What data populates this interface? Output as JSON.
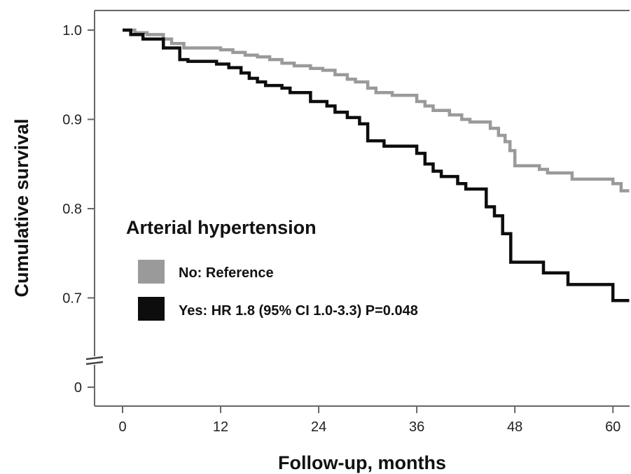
{
  "chart_data": {
    "type": "line",
    "step": true,
    "xlabel": "Follow-up, months",
    "ylabel": "Cumulative survival",
    "x_ticks": [
      0,
      12,
      24,
      36,
      48,
      60
    ],
    "y_ticks": [
      {
        "value": 1.0,
        "label": "1.0"
      },
      {
        "value": 0.9,
        "label": "0.9"
      },
      {
        "value": 0.8,
        "label": "0.8"
      },
      {
        "value": 0.7,
        "label": "0.7"
      },
      {
        "value": 0.6,
        "label": "0"
      }
    ],
    "y_axis_break": true,
    "xlim": [
      -3,
      62
    ],
    "ylim": [
      0.58,
      1.02
    ],
    "grid": false,
    "legend": {
      "title": "Arterial hypertension",
      "placement": "middle-left"
    },
    "series": [
      {
        "name": "No: Reference",
        "color": "#9a9a9a",
        "points": [
          [
            0,
            1.0
          ],
          [
            1.5,
            1.0
          ],
          [
            1.5,
            0.997
          ],
          [
            3,
            0.997
          ],
          [
            3,
            0.995
          ],
          [
            5,
            0.995
          ],
          [
            5,
            0.99
          ],
          [
            6,
            0.99
          ],
          [
            6,
            0.985
          ],
          [
            7.5,
            0.985
          ],
          [
            7.5,
            0.98
          ],
          [
            12,
            0.98
          ],
          [
            12,
            0.978
          ],
          [
            13.5,
            0.978
          ],
          [
            13.5,
            0.975
          ],
          [
            15,
            0.975
          ],
          [
            15,
            0.972
          ],
          [
            16.5,
            0.972
          ],
          [
            16.5,
            0.97
          ],
          [
            18,
            0.97
          ],
          [
            18,
            0.967
          ],
          [
            19.5,
            0.967
          ],
          [
            19.5,
            0.963
          ],
          [
            21,
            0.963
          ],
          [
            21,
            0.96
          ],
          [
            23,
            0.96
          ],
          [
            23,
            0.957
          ],
          [
            24.5,
            0.957
          ],
          [
            24.5,
            0.955
          ],
          [
            26,
            0.955
          ],
          [
            26,
            0.95
          ],
          [
            27.5,
            0.95
          ],
          [
            27.5,
            0.945
          ],
          [
            28.5,
            0.945
          ],
          [
            28.5,
            0.942
          ],
          [
            30,
            0.942
          ],
          [
            30,
            0.935
          ],
          [
            31,
            0.935
          ],
          [
            31,
            0.93
          ],
          [
            33,
            0.93
          ],
          [
            33,
            0.927
          ],
          [
            36,
            0.927
          ],
          [
            36,
            0.92
          ],
          [
            37,
            0.92
          ],
          [
            37,
            0.915
          ],
          [
            38,
            0.915
          ],
          [
            38,
            0.91
          ],
          [
            40,
            0.91
          ],
          [
            40,
            0.905
          ],
          [
            41.5,
            0.905
          ],
          [
            41.5,
            0.9
          ],
          [
            42.5,
            0.9
          ],
          [
            42.5,
            0.897
          ],
          [
            45,
            0.897
          ],
          [
            45,
            0.89
          ],
          [
            46,
            0.89
          ],
          [
            46,
            0.882
          ],
          [
            46.8,
            0.882
          ],
          [
            46.8,
            0.875
          ],
          [
            47.4,
            0.875
          ],
          [
            47.4,
            0.865
          ],
          [
            48,
            0.865
          ],
          [
            48,
            0.848
          ],
          [
            51,
            0.848
          ],
          [
            51,
            0.844
          ],
          [
            52,
            0.844
          ],
          [
            52,
            0.84
          ],
          [
            55,
            0.84
          ],
          [
            55,
            0.833
          ],
          [
            60,
            0.833
          ],
          [
            60,
            0.828
          ],
          [
            61,
            0.828
          ],
          [
            61,
            0.82
          ],
          [
            62,
            0.82
          ]
        ]
      },
      {
        "name": "Yes: HR 1.8 (95% CI 1.0-3.3) P=0.048",
        "color": "#0d0d0d",
        "points": [
          [
            0,
            1.0
          ],
          [
            1,
            1.0
          ],
          [
            1,
            0.995
          ],
          [
            2.5,
            0.995
          ],
          [
            2.5,
            0.99
          ],
          [
            5,
            0.99
          ],
          [
            5,
            0.98
          ],
          [
            7,
            0.98
          ],
          [
            7,
            0.967
          ],
          [
            8,
            0.967
          ],
          [
            8,
            0.965
          ],
          [
            11.5,
            0.965
          ],
          [
            11.5,
            0.962
          ],
          [
            13,
            0.962
          ],
          [
            13,
            0.958
          ],
          [
            14.5,
            0.958
          ],
          [
            14.5,
            0.952
          ],
          [
            15.5,
            0.952
          ],
          [
            15.5,
            0.946
          ],
          [
            16.5,
            0.946
          ],
          [
            16.5,
            0.942
          ],
          [
            17.5,
            0.942
          ],
          [
            17.5,
            0.938
          ],
          [
            19.5,
            0.938
          ],
          [
            19.5,
            0.935
          ],
          [
            20.5,
            0.935
          ],
          [
            20.5,
            0.93
          ],
          [
            23,
            0.93
          ],
          [
            23,
            0.92
          ],
          [
            25,
            0.92
          ],
          [
            25,
            0.915
          ],
          [
            26,
            0.915
          ],
          [
            26,
            0.908
          ],
          [
            27.5,
            0.908
          ],
          [
            27.5,
            0.902
          ],
          [
            29,
            0.902
          ],
          [
            29,
            0.895
          ],
          [
            30,
            0.895
          ],
          [
            30,
            0.876
          ],
          [
            32,
            0.876
          ],
          [
            32,
            0.87
          ],
          [
            36,
            0.87
          ],
          [
            36,
            0.862
          ],
          [
            37,
            0.862
          ],
          [
            37,
            0.85
          ],
          [
            38,
            0.85
          ],
          [
            38,
            0.842
          ],
          [
            39,
            0.842
          ],
          [
            39,
            0.836
          ],
          [
            41,
            0.836
          ],
          [
            41,
            0.828
          ],
          [
            42,
            0.828
          ],
          [
            42,
            0.822
          ],
          [
            44.5,
            0.822
          ],
          [
            44.5,
            0.802
          ],
          [
            45.5,
            0.802
          ],
          [
            45.5,
            0.792
          ],
          [
            46.5,
            0.792
          ],
          [
            46.5,
            0.772
          ],
          [
            47.5,
            0.772
          ],
          [
            47.5,
            0.74
          ],
          [
            51.5,
            0.74
          ],
          [
            51.5,
            0.728
          ],
          [
            54.5,
            0.728
          ],
          [
            54.5,
            0.715
          ],
          [
            60,
            0.715
          ],
          [
            60,
            0.697
          ],
          [
            62,
            0.697
          ]
        ]
      }
    ]
  }
}
